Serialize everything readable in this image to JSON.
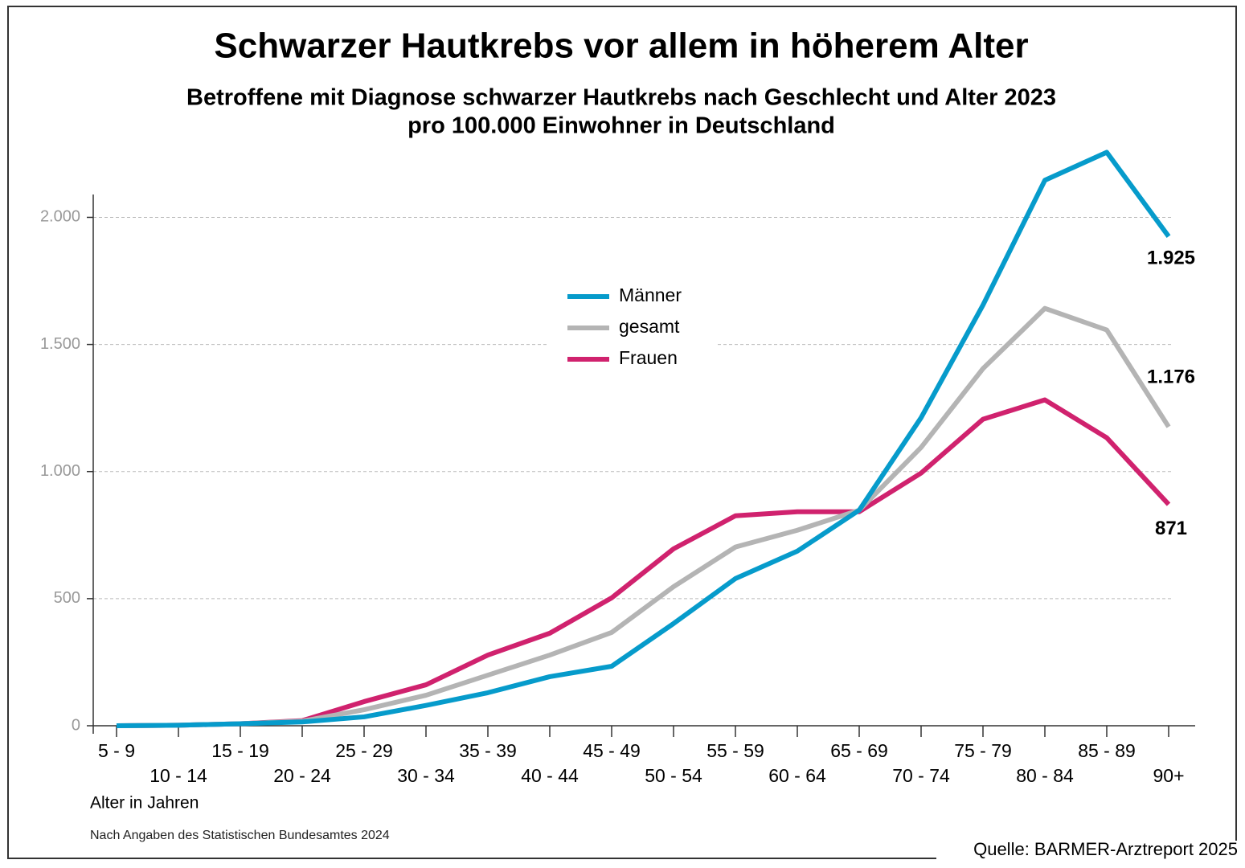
{
  "chart_data": {
    "type": "line",
    "title": "Schwarzer Hautkrebs vor allem in höherem Alter",
    "subtitle": [
      "Betroffene mit Diagnose schwarzer Hautkrebs nach Geschlecht und Alter 2023",
      "pro 100.000 Einwohner in Deutschland"
    ],
    "x_label": "Alter in Jahren",
    "note": "Nach Angaben des Statistischen Bundesamtes 2024",
    "source": "Quelle: BARMER-Arztreport 2025",
    "categories": [
      "5 - 9",
      "10 - 14",
      "15 - 19",
      "20 - 24",
      "25 - 29",
      "30 - 34",
      "35 - 39",
      "40 - 44",
      "45 - 49",
      "50 - 54",
      "55 - 59",
      "60 - 64",
      "65 - 69",
      "70 - 74",
      "75 - 79",
      "80 - 84",
      "85 - 89",
      "90+"
    ],
    "series": [
      {
        "name": "Männer",
        "color": "#069bcb",
        "values": [
          0,
          2,
          8,
          15,
          35,
          80,
          130,
          193,
          234,
          402,
          579,
          687,
          848,
          1212,
          1655,
          2146,
          2256,
          1925
        ],
        "value_labels": [
          null,
          null,
          null,
          null,
          null,
          null,
          null,
          null,
          null,
          null,
          null,
          null,
          null,
          null,
          null,
          null,
          null,
          "1.925"
        ]
      },
      {
        "name": "gesamt",
        "color": "#b4b4b4",
        "values": [
          0,
          2,
          8,
          18,
          63,
          120,
          199,
          278,
          367,
          547,
          703,
          769,
          848,
          1095,
          1405,
          1642,
          1557,
          1176
        ],
        "value_labels": [
          null,
          null,
          null,
          null,
          null,
          null,
          null,
          null,
          null,
          null,
          null,
          null,
          null,
          null,
          null,
          null,
          null,
          "1.176"
        ]
      },
      {
        "name": "Frauen",
        "color": "#d0226e",
        "values": [
          0,
          2,
          8,
          20,
          95,
          161,
          278,
          364,
          503,
          696,
          826,
          842,
          842,
          994,
          1206,
          1282,
          1133,
          871
        ],
        "value_labels": [
          null,
          null,
          null,
          null,
          null,
          null,
          null,
          null,
          null,
          null,
          null,
          null,
          null,
          null,
          null,
          null,
          null,
          "871"
        ]
      }
    ],
    "ylim": [
      0,
      2090
    ],
    "yticks": [
      0,
      500,
      {
        "value": 1000,
        "label": "1.000"
      },
      {
        "value": 1500,
        "label": "1.500"
      },
      {
        "value": 2000,
        "label": "2.000"
      }
    ],
    "grid": true
  }
}
